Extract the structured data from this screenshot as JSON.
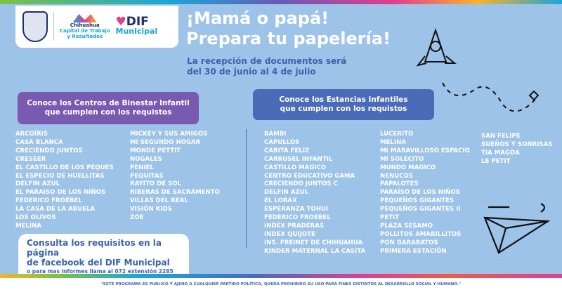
{
  "header": {
    "logos": {
      "chihuahua": [
        "Chihuahua",
        "Capital de Trabajo",
        "y Resultados"
      ],
      "dif": "DIF",
      "dif_sub": "Municipal"
    },
    "title_line1": "¡Mamá o papá!",
    "title_line2": "Prepara tu papelería!",
    "reception_line1": "La recepción de documentos será",
    "reception_line2": "del  30 de junio al  4 de julio"
  },
  "centros": {
    "heading_line1": "Conoce los Centros de Binestar Infantil",
    "heading_line2": "que cumplen con los requistos",
    "col1": [
      "ARCOÍRIS",
      "CASA BLANCA",
      "CRECIENDO JUNTOS",
      "CRESEER",
      "EL CASTILLO DE LOS PEQUES",
      "EL ESPECIO DE HUELLITAS",
      "DELFIN AZUL",
      "EL PARAISO DE LOS NIÑOS",
      "FEDERICO FROEBEL",
      "LA CASA DE LA ABUELA",
      "LOS OLIVOS",
      "MELINA"
    ],
    "col2": [
      "MICKEY Y SUS AMIGOS",
      "MI SEGUNDO HOGAR",
      "MONDE PETTIT",
      "NOGALES",
      "PENIEL",
      "PEQUITAS",
      "RAYITO DE SOL",
      "RIBERAS DE SACRAMENTO",
      "VILLAS DEL REAL",
      "VISIÓN KIDS",
      "ZOE"
    ]
  },
  "estancias": {
    "heading_line1": "Conoce los Estancias Infantiles",
    "heading_line2": "que cumplen con los requistos",
    "col1": [
      "BAMBI",
      "CAPULLOS",
      "CARITA FELIZ",
      "CARRUSEL INFANTIL",
      "CASTILLO MAGICO",
      "CENTRO EDUCATIVO GAMA",
      "CRECIENDO JUNTOS C",
      "DELFIN AZUL",
      "EL LORAX",
      "ESPERANZA TOHUI",
      "FEDERICO FROEBEL",
      "INDEX PRADERAS",
      "INDEX QUIJOTE",
      "INS. FREINET DE CHIHUAHUA",
      "KINDER MATERNAL LA CASITA"
    ],
    "col2": [
      "LUCERITO",
      "MELINA",
      "MI MARAVILLOSO ESPACIO",
      "MI SOLECITO",
      "MUNDO MAGICO",
      "NENUCOS",
      "PAPALOTES",
      "PARAÍSO DE LOS NIÑOS",
      "PEQUEÑOS GIGANTES",
      "PEQUEÑOS GIGANTES II",
      "PETIT",
      "PLAZA SESAMO",
      "POLLITOS AMARILLITOS",
      "PON GARABATOS",
      "PRIMERA ESTACIÓN"
    ],
    "col3": [
      "SAN FELIPE",
      "SUEÑOS Y SONRISAS",
      "TIA MAGDA",
      "LE PETIT"
    ]
  },
  "consult": {
    "line1": "Consulta los requisitos en la página",
    "line2": "de facebook del DIF Municipal",
    "line3": "o para mas informes llama al 072 extensión 2285"
  },
  "footer": "\"ESTE PROGRAMA ES PUBLICO Y AJENO A CUALQUIER PARTIDO POLÍTICO, QUEDA PROHIBIDO SU USO PARA FINES DISTINTOS AL DESARROLLO SOCIAL Y HUMANO.\"",
  "colors": {
    "background": "#9dc3e8",
    "purple": "#7a59b0",
    "blue": "#4a6cb8",
    "text_blue": "#3c63ae"
  },
  "icons": [
    "city-seal-logo",
    "chihuahua-logo",
    "dif-heart-logo",
    "rocket-doodle",
    "paper-plane-doodle"
  ]
}
